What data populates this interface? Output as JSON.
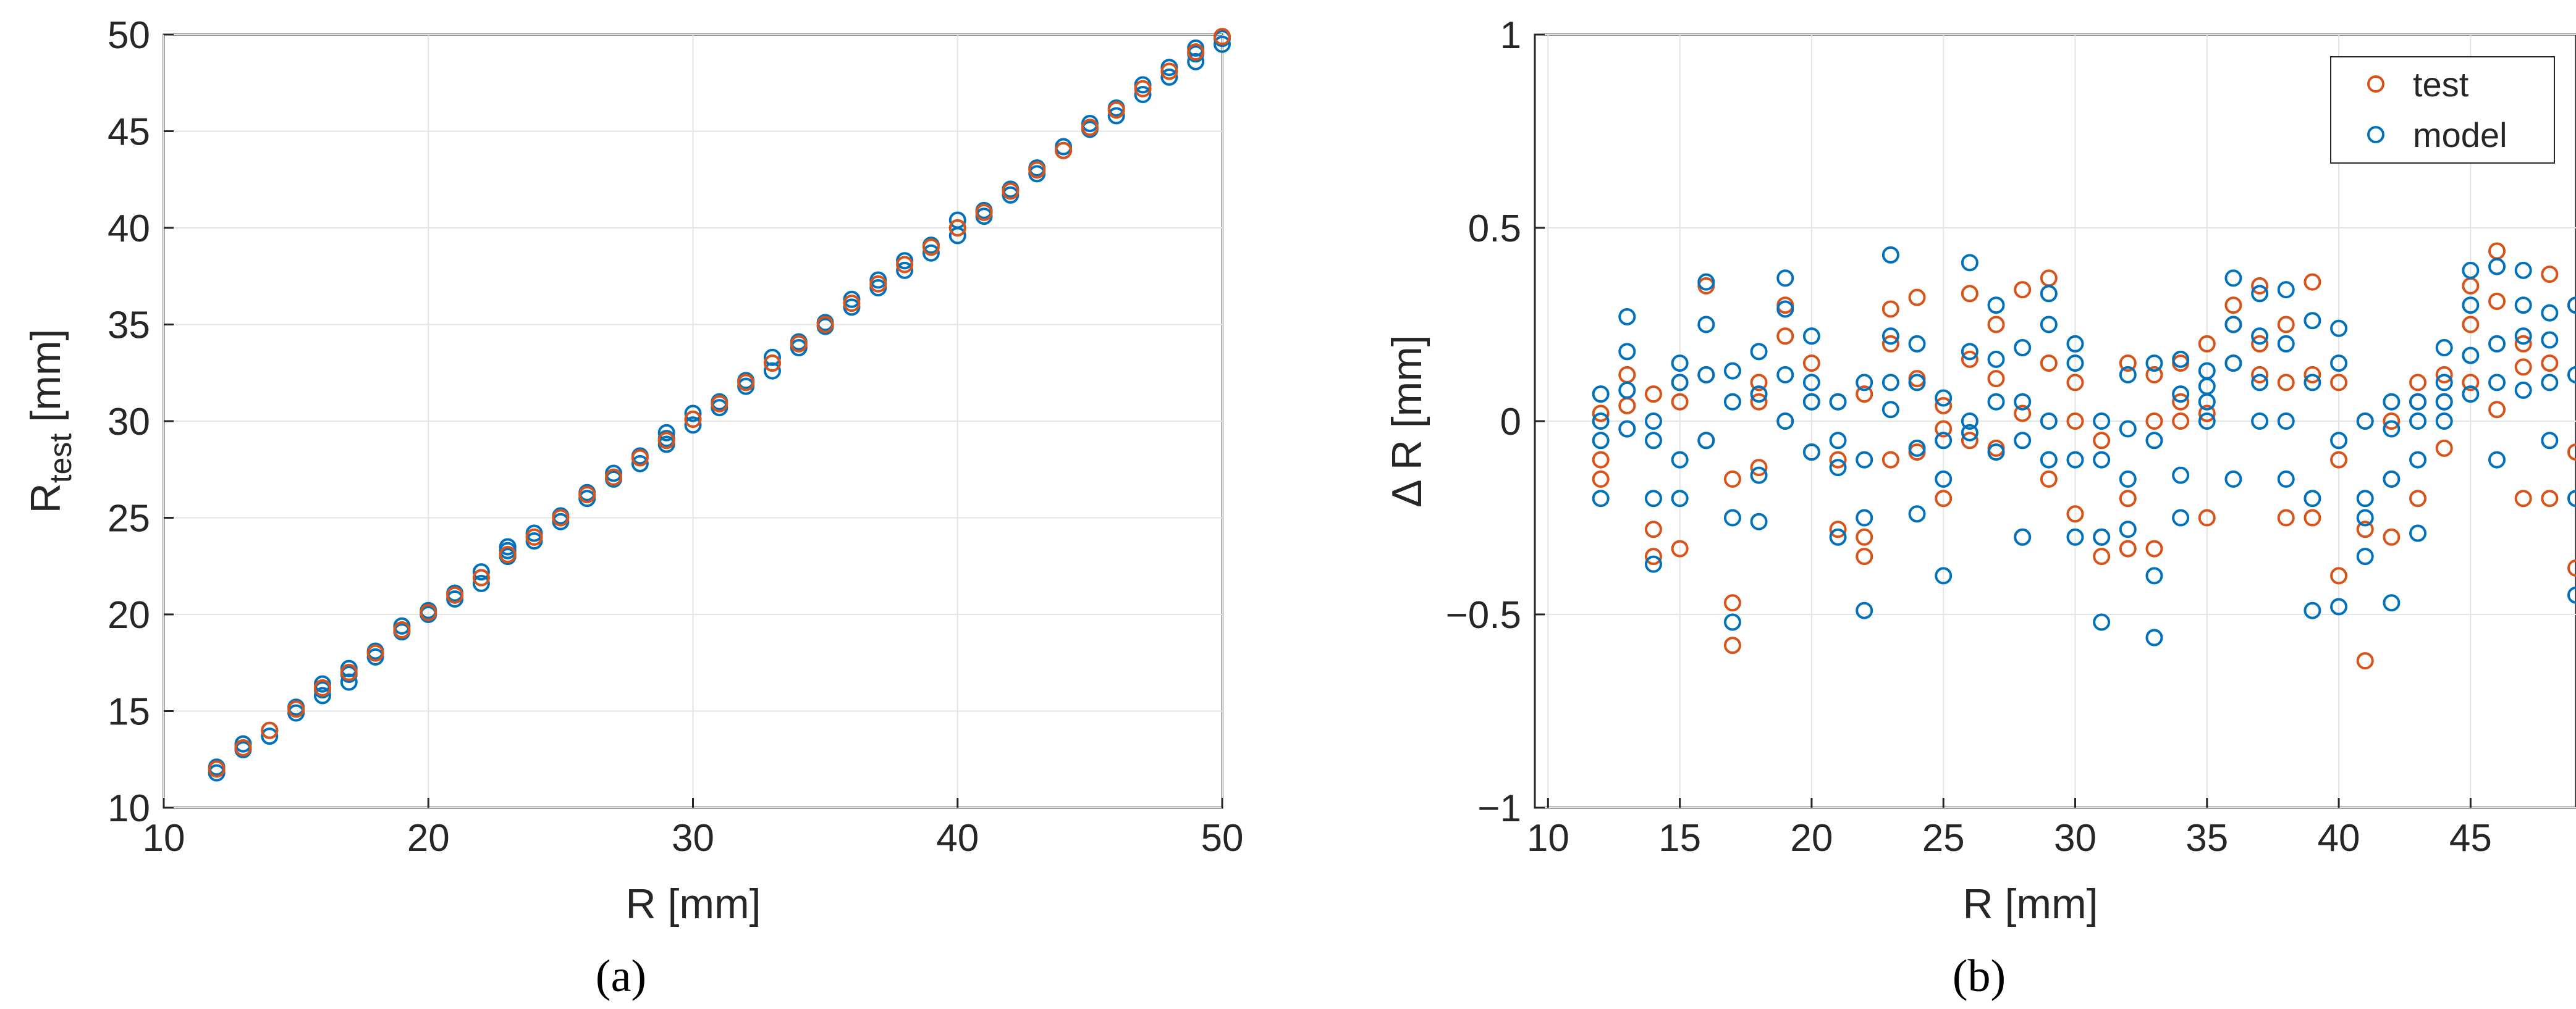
{
  "chart_data": [
    {
      "id": "a",
      "type": "scatter",
      "caption": "(a)",
      "xlabel": "R [mm]",
      "ylabel_main": "R",
      "ylabel_sub": "test",
      "ylabel_unit": "[mm]",
      "xlim": [
        10,
        50
      ],
      "ylim": [
        10,
        50
      ],
      "xticks": [
        10,
        20,
        30,
        40,
        50
      ],
      "yticks": [
        10,
        15,
        20,
        25,
        30,
        35,
        40,
        45,
        50
      ],
      "grid": true,
      "colors": {
        "test": "#D95319",
        "model": "#0072BD"
      },
      "series": [
        {
          "name": "model",
          "x": [
            12,
            12,
            13,
            13,
            14,
            14,
            15,
            15,
            16,
            16,
            16,
            17,
            17,
            17,
            18,
            18,
            19,
            19,
            20,
            20,
            21,
            21,
            22,
            22,
            22,
            23,
            23,
            23,
            24,
            24,
            25,
            25,
            26,
            26,
            27,
            27,
            28,
            28,
            29,
            29,
            29,
            30,
            30,
            30,
            31,
            31,
            32,
            32,
            33,
            33,
            33,
            34,
            34,
            35,
            35,
            36,
            36,
            37,
            37,
            38,
            38,
            39,
            39,
            40,
            40,
            40,
            41,
            41,
            42,
            42,
            43,
            43,
            44,
            44,
            45,
            45,
            46,
            46,
            47,
            47,
            48,
            48,
            49,
            49,
            49,
            50,
            50
          ],
          "y": [
            11.8,
            12.1,
            13.0,
            13.3,
            13.7,
            14.0,
            14.9,
            15.2,
            15.8,
            16.1,
            16.4,
            16.5,
            16.9,
            17.2,
            17.8,
            18.1,
            19.1,
            19.4,
            20.0,
            20.2,
            20.8,
            21.1,
            21.6,
            21.9,
            22.2,
            23.0,
            23.3,
            23.5,
            23.8,
            24.2,
            24.8,
            25.1,
            26.0,
            26.3,
            27.0,
            27.3,
            27.8,
            28.2,
            28.8,
            29.1,
            29.4,
            29.8,
            30.1,
            30.4,
            30.7,
            31.0,
            31.8,
            32.1,
            32.6,
            33.0,
            33.3,
            33.8,
            34.1,
            34.9,
            35.1,
            35.9,
            36.3,
            36.9,
            37.3,
            37.8,
            38.3,
            38.7,
            39.1,
            39.6,
            40.0,
            40.4,
            40.6,
            40.9,
            41.7,
            42.0,
            42.8,
            43.1,
            44.0,
            44.2,
            45.1,
            45.4,
            45.8,
            46.2,
            46.9,
            47.4,
            47.8,
            48.3,
            48.6,
            49.0,
            49.3,
            49.5,
            49.8
          ]
        },
        {
          "name": "test",
          "x": [
            12,
            13,
            14,
            15,
            16,
            17,
            18,
            19,
            20,
            21,
            22,
            23,
            24,
            25,
            26,
            27,
            28,
            29,
            30,
            31,
            32,
            33,
            34,
            35,
            36,
            37,
            38,
            39,
            40,
            41,
            42,
            43,
            44,
            45,
            46,
            47,
            48,
            49,
            50
          ],
          "y": [
            12.0,
            13.1,
            14.0,
            15.1,
            16.2,
            17.0,
            18.0,
            19.2,
            20.1,
            21.0,
            21.9,
            23.1,
            24.0,
            25.0,
            26.2,
            27.1,
            28.1,
            29.0,
            30.1,
            30.9,
            32.0,
            33.0,
            34.0,
            35.0,
            36.1,
            37.1,
            38.1,
            39.0,
            40.0,
            40.8,
            41.9,
            43.0,
            44.0,
            45.2,
            46.1,
            47.2,
            48.1,
            49.1,
            49.9
          ]
        }
      ]
    },
    {
      "id": "b",
      "type": "scatter",
      "caption": "(b)",
      "xlabel": "R [mm]",
      "ylabel": "Δ R [mm]",
      "xlim": [
        9.5,
        49
      ],
      "ylim": [
        -1,
        1
      ],
      "xticks": [
        10,
        15,
        20,
        25,
        30,
        35,
        40,
        45
      ],
      "yticks": [
        -1,
        -0.5,
        0,
        0.5,
        1
      ],
      "ytick_labels": [
        "−1",
        "−0.5",
        "0",
        "0.5",
        "1"
      ],
      "grid": true,
      "legend_position": "top-right",
      "legend": [
        "test",
        "model"
      ],
      "colors": {
        "test": "#D95319",
        "model": "#0072BD"
      },
      "series": [
        {
          "name": "test",
          "x": [
            12,
            12,
            12,
            13,
            13,
            13,
            14,
            14,
            14,
            15,
            15,
            15,
            16,
            16,
            16,
            17,
            17,
            17,
            18,
            18,
            18,
            19,
            19,
            19,
            20,
            20,
            20,
            21,
            21,
            21,
            22,
            22,
            22,
            23,
            23,
            23,
            24,
            24,
            24,
            25,
            25,
            25,
            26,
            26,
            26,
            27,
            27,
            27,
            28,
            28,
            28,
            29,
            29,
            29,
            30,
            30,
            30,
            31,
            31,
            31,
            32,
            32,
            32,
            33,
            33,
            33,
            34,
            34,
            34,
            35,
            35,
            35,
            36,
            36,
            36,
            37,
            37,
            37,
            38,
            38,
            38,
            39,
            39,
            39,
            40,
            40,
            40,
            41,
            41,
            41,
            42,
            42,
            42,
            43,
            43,
            43,
            44,
            44,
            44,
            45,
            45,
            45,
            46,
            46,
            46,
            47,
            47,
            47,
            48,
            48,
            48,
            49,
            49,
            49
          ],
          "y": [
            -0.1,
            0.02,
            -0.15,
            0.04,
            0.12,
            -0.02,
            -0.28,
            0.07,
            -0.35,
            -0.33,
            0.05,
            0.1,
            0.35,
            -0.05,
            0.12,
            -0.47,
            -0.58,
            -0.15,
            -0.12,
            0.05,
            0.1,
            0.3,
            0.22,
            0.0,
            0.15,
            0.05,
            -0.08,
            -0.28,
            0.05,
            -0.1,
            0.07,
            -0.3,
            -0.35,
            0.29,
            0.2,
            -0.1,
            0.32,
            -0.08,
            0.11,
            -0.02,
            -0.2,
            0.04,
            0.33,
            -0.05,
            0.16,
            -0.07,
            0.11,
            0.25,
            0.34,
            -0.3,
            0.02,
            0.37,
            0.15,
            -0.15,
            0.0,
            -0.24,
            0.1,
            -0.35,
            -0.05,
            -0.3,
            0.15,
            -0.33,
            -0.2,
            0.0,
            0.12,
            -0.33,
            0.0,
            0.05,
            0.15,
            -0.25,
            0.02,
            0.2,
            0.3,
            0.25,
            0.15,
            0.35,
            0.2,
            0.12,
            0.25,
            0.1,
            -0.25,
            0.36,
            0.12,
            -0.25,
            0.1,
            -0.4,
            -0.1,
            -0.62,
            -0.28,
            0.0,
            -0.15,
            -0.3,
            0.0,
            0.05,
            -0.2,
            0.1,
            0.12,
            -0.07,
            0.05,
            0.25,
            0.35,
            0.1,
            0.44,
            0.31,
            0.03,
            0.14,
            -0.2,
            0.2,
            0.38,
            -0.2,
            0.15,
            0.3,
            -0.38,
            -0.08
          ]
        },
        {
          "name": "model",
          "x": [
            12,
            12,
            12,
            12,
            13,
            13,
            13,
            13,
            14,
            14,
            14,
            14,
            15,
            15,
            15,
            15,
            16,
            16,
            16,
            16,
            17,
            17,
            17,
            17,
            18,
            18,
            18,
            18,
            19,
            19,
            19,
            19,
            20,
            20,
            20,
            20,
            21,
            21,
            21,
            21,
            22,
            22,
            22,
            22,
            23,
            23,
            23,
            23,
            24,
            24,
            24,
            24,
            25,
            25,
            25,
            25,
            26,
            26,
            26,
            26,
            27,
            27,
            27,
            27,
            28,
            28,
            28,
            28,
            29,
            29,
            29,
            29,
            30,
            30,
            30,
            30,
            31,
            31,
            31,
            31,
            32,
            32,
            32,
            32,
            33,
            33,
            33,
            33,
            34,
            34,
            34,
            34,
            35,
            35,
            35,
            35,
            36,
            36,
            36,
            36,
            37,
            37,
            37,
            37,
            38,
            38,
            38,
            38,
            39,
            39,
            39,
            39,
            40,
            40,
            40,
            40,
            41,
            41,
            41,
            41,
            42,
            42,
            42,
            42,
            43,
            43,
            43,
            43,
            44,
            44,
            44,
            44,
            45,
            45,
            45,
            45,
            46,
            46,
            46,
            46,
            47,
            47,
            47,
            47,
            48,
            48,
            48,
            48,
            49,
            49,
            49,
            49
          ],
          "y": [
            0.07,
            -0.05,
            -0.2,
            0.0,
            0.27,
            0.18,
            0.08,
            -0.02,
            -0.37,
            -0.2,
            -0.05,
            0.0,
            0.15,
            0.1,
            -0.1,
            -0.2,
            0.36,
            0.25,
            0.12,
            -0.05,
            -0.52,
            -0.25,
            0.13,
            0.05,
            0.18,
            0.07,
            -0.14,
            -0.26,
            0.37,
            0.29,
            0.12,
            0.0,
            0.22,
            0.1,
            0.05,
            -0.08,
            -0.3,
            -0.12,
            -0.05,
            0.05,
            -0.49,
            -0.25,
            -0.1,
            0.1,
            0.43,
            0.22,
            0.1,
            0.03,
            -0.24,
            -0.07,
            0.1,
            0.2,
            0.06,
            -0.15,
            -0.05,
            -0.4,
            0.41,
            0.18,
            0.0,
            -0.03,
            0.3,
            0.16,
            0.05,
            -0.08,
            0.05,
            -0.05,
            0.19,
            -0.3,
            0.33,
            0.0,
            -0.1,
            0.25,
            0.2,
            -0.1,
            -0.3,
            0.15,
            -0.52,
            -0.3,
            -0.1,
            0.0,
            0.12,
            -0.02,
            -0.15,
            -0.28,
            -0.56,
            -0.4,
            -0.05,
            0.15,
            0.07,
            -0.14,
            0.16,
            -0.25,
            0.0,
            0.13,
            0.05,
            0.09,
            0.37,
            0.25,
            0.15,
            -0.15,
            0.33,
            0.22,
            0.1,
            0.0,
            0.34,
            0.2,
            -0.15,
            0.0,
            0.26,
            -0.49,
            0.1,
            -0.2,
            -0.48,
            0.24,
            0.15,
            -0.05,
            -0.35,
            -0.25,
            0.0,
            -0.2,
            -0.47,
            -0.15,
            -0.02,
            0.05,
            0.05,
            -0.1,
            -0.29,
            0.0,
            0.19,
            0.1,
            0.05,
            0.0,
            0.39,
            0.3,
            0.17,
            0.07,
            0.4,
            0.2,
            0.1,
            -0.1,
            0.39,
            0.3,
            0.22,
            0.08,
            0.28,
            0.21,
            0.1,
            -0.05,
            0.3,
            0.12,
            -0.2,
            -0.45
          ]
        }
      ]
    }
  ]
}
